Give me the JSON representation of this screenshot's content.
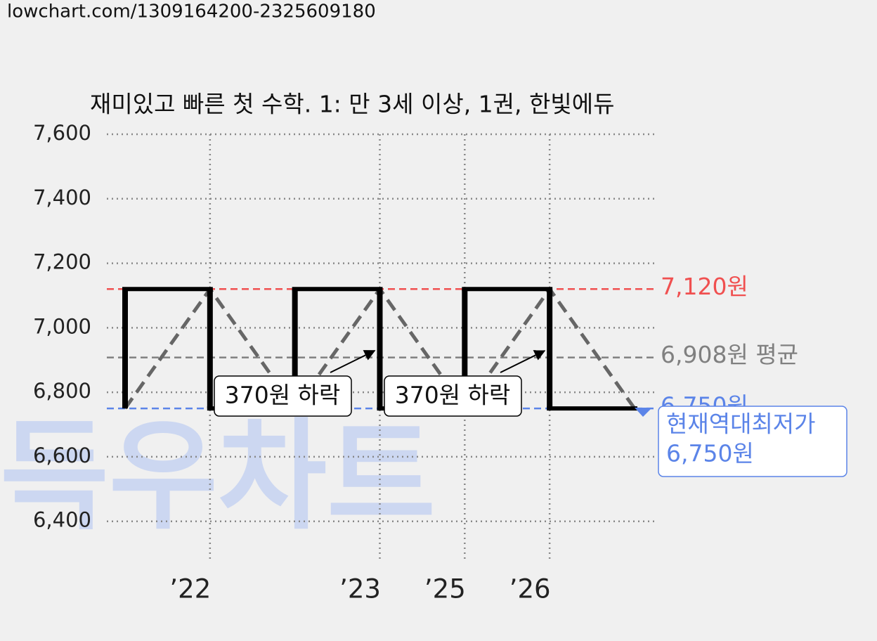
{
  "header": {
    "url": "lowchart.com/1309164200-2325609180"
  },
  "chart_data": {
    "type": "price-step",
    "title": "재미있고 빠른 첫 수학. 1: 만 3세 이상, 1권, 한빛에듀",
    "watermark": "득우차트",
    "categories": [
      null,
      "’22",
      null,
      "’23",
      "’25",
      "’26",
      null
    ],
    "values": [
      6750,
      7120,
      6750,
      7120,
      6750,
      7120,
      6750
    ],
    "step_color": "#000000",
    "line_color": "#666666",
    "ylim": [
      6273,
      7600
    ],
    "yticks": [
      {
        "value": 6400,
        "label": "6,400"
      },
      {
        "value": 6600,
        "label": "6,600"
      },
      {
        "value": 6800,
        "label": "6,800"
      },
      {
        "value": 7000,
        "label": "7,000"
      },
      {
        "value": 7200,
        "label": "7,200"
      },
      {
        "value": 7400,
        "label": "7,400"
      },
      {
        "value": 7600,
        "label": "7,600"
      }
    ],
    "grid": true,
    "reference_lines": [
      {
        "value": 7120,
        "label": "7,120원",
        "color": "#f05050"
      },
      {
        "value": 6908,
        "label": "6,908원 평균",
        "color": "#808080"
      },
      {
        "value": 6750,
        "label": "6,750원",
        "color": "#5b84e8"
      }
    ],
    "annotations": [
      {
        "text": "370원 하락"
      },
      {
        "text": "370원 하락"
      }
    ],
    "current_box": {
      "lines": [
        "현재역대최저가",
        "6,750원"
      ],
      "color": "#5b84e8"
    }
  }
}
